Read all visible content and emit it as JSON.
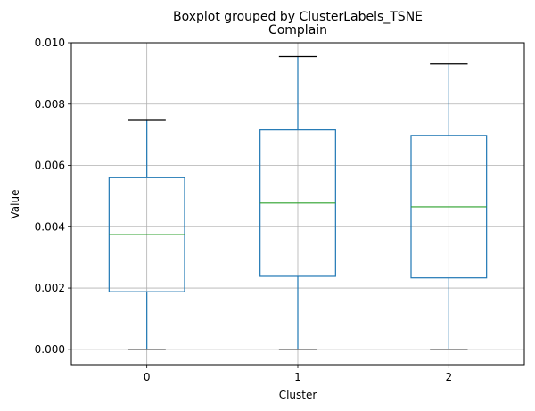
{
  "chart_data": {
    "type": "box",
    "suptitle": "Boxplot grouped by ClusterLabels_TSNE",
    "title": "Complain",
    "xlabel": "Cluster",
    "ylabel": "Value",
    "categories": [
      "0",
      "1",
      "2"
    ],
    "ylim": [
      -0.0005,
      0.01
    ],
    "yticks": [
      0.0,
      0.002,
      0.004,
      0.006,
      0.008,
      0.01
    ],
    "ytick_labels": [
      "0.000",
      "0.002",
      "0.004",
      "0.006",
      "0.008",
      "0.010"
    ],
    "grid": true,
    "boxes": [
      {
        "label": "0",
        "whisker_low": 0.0,
        "q1": 0.00188,
        "median": 0.00375,
        "q3": 0.0056,
        "whisker_high": 0.00747
      },
      {
        "label": "1",
        "whisker_low": 0.0,
        "q1": 0.00238,
        "median": 0.00477,
        "q3": 0.00716,
        "whisker_high": 0.00955
      },
      {
        "label": "2",
        "whisker_low": 0.0,
        "q1": 0.00233,
        "median": 0.00465,
        "q3": 0.00698,
        "whisker_high": 0.00931
      }
    ],
    "colors": {
      "box": "#1f77b4",
      "median": "#2ca02c",
      "cap": "#000000",
      "grid": "#b0b0b0"
    }
  }
}
